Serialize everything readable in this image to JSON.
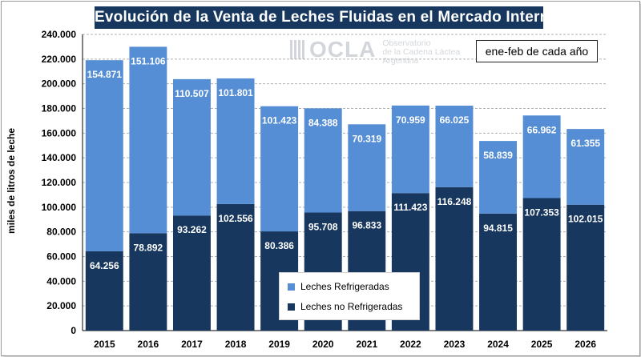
{
  "colors": {
    "refrigeradas": "#558ed5",
    "no_refrigeradas": "#17375e",
    "title_bg": "#17375e"
  },
  "watermark": {
    "logo": "OCLA",
    "line1": "Observatorio",
    "line2": "de la Cadena Láctea",
    "line3": "Argentina"
  },
  "chart_data": {
    "type": "bar",
    "stacked": true,
    "title": "Evolución de la Venta de Leches Fluidas en el Mercado Interno",
    "note": "ene-feb de cada año",
    "ylabel": "miles de litros de leche",
    "ylim": [
      0,
      240000
    ],
    "y_ticks": [
      0,
      20000,
      40000,
      60000,
      80000,
      100000,
      120000,
      140000,
      160000,
      180000,
      200000,
      220000,
      240000
    ],
    "y_tick_labels": [
      "0",
      "20.000",
      "40.000",
      "60.000",
      "80.000",
      "100.000",
      "120.000",
      "140.000",
      "160.000",
      "180.000",
      "200.000",
      "220.000",
      "240.000"
    ],
    "grid": true,
    "legend_position": "bottom-center",
    "categories": [
      "2015",
      "2016",
      "2017",
      "2018",
      "2019",
      "2020",
      "2021",
      "2022",
      "2023",
      "2024",
      "2025",
      "2026"
    ],
    "series": [
      {
        "name": "Leches no Refrigeradas",
        "values": [
          64256,
          78892,
          93262,
          102556,
          80386,
          95708,
          96833,
          111423,
          116248,
          94815,
          107353,
          102015
        ],
        "labels": [
          "64.256",
          "78.892",
          "93.262",
          "102.556",
          "80.386",
          "95.708",
          "96.833",
          "111.423",
          "116.248",
          "94.815",
          "107.353",
          "102.015"
        ]
      },
      {
        "name": "Leches Refrigeradas",
        "values": [
          154871,
          151106,
          110507,
          101801,
          101423,
          84388,
          70319,
          70959,
          66025,
          58839,
          66962,
          61355
        ],
        "labels": [
          "154.871",
          "151.106",
          "110.507",
          "101.801",
          "101.423",
          "84.388",
          "70.319",
          "70.959",
          "66.025",
          "58.839",
          "66.962",
          "61.355"
        ]
      }
    ],
    "legend": [
      "Leches Refrigeradas",
      "Leches no Refrigeradas"
    ]
  }
}
